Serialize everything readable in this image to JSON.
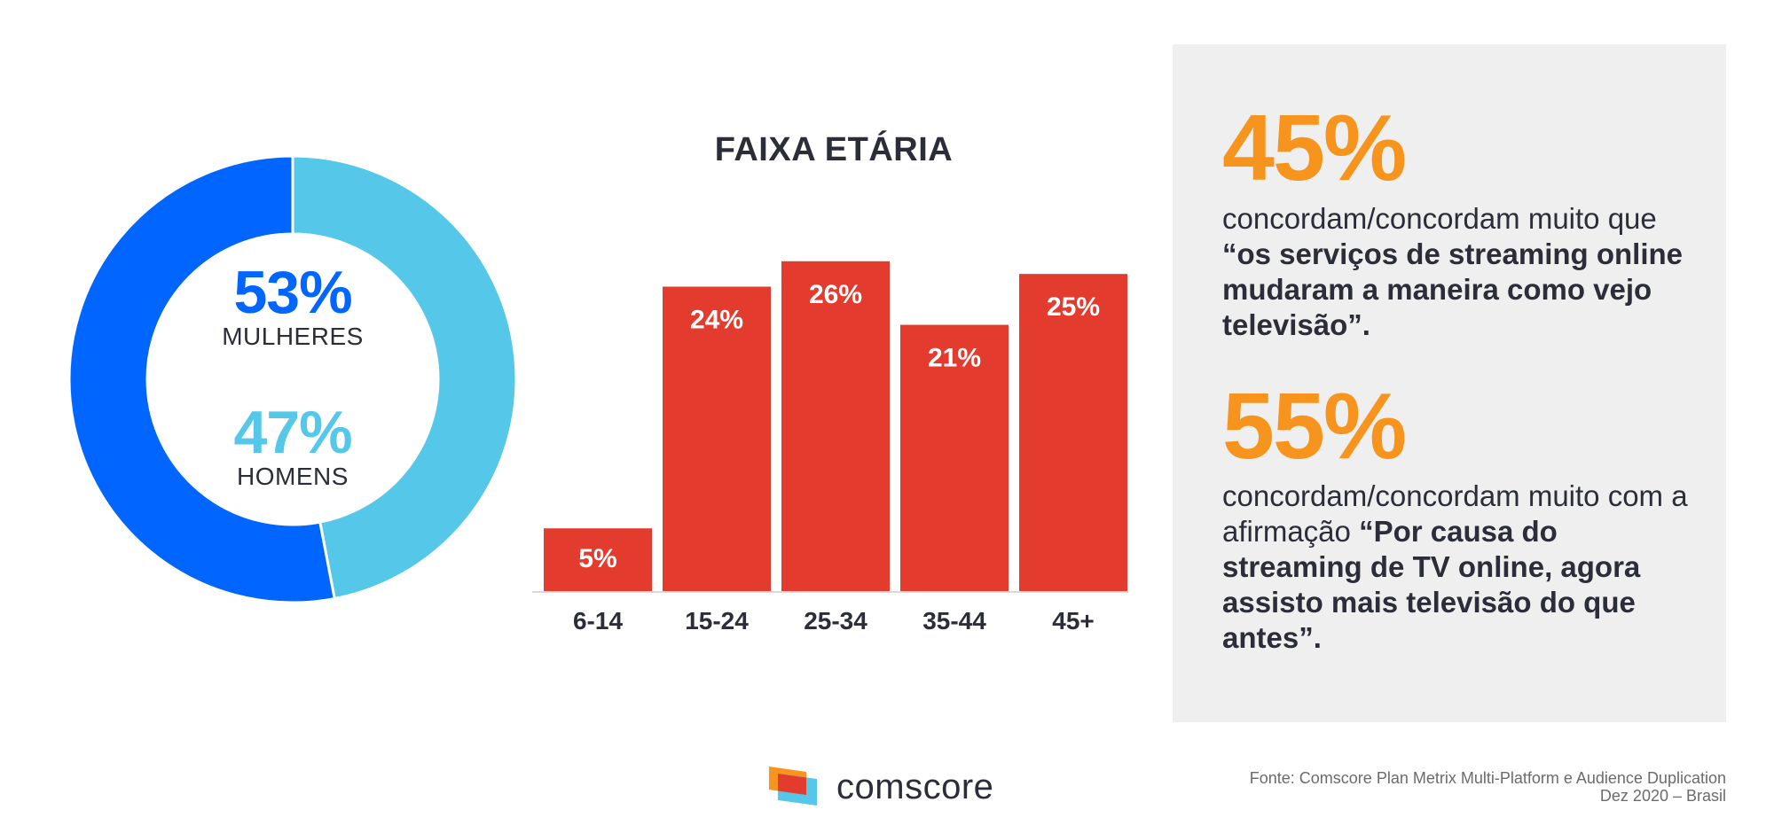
{
  "gender": {
    "women_pct": "53%",
    "women_label": "MULHERES",
    "men_pct": "47%",
    "men_label": "HOMENS",
    "women_value": 53,
    "men_value": 47,
    "women_color": "#0066ff",
    "men_color": "#55c8ea"
  },
  "chart_data": [
    {
      "type": "pie",
      "categories": [
        "MULHERES",
        "HOMENS"
      ],
      "values": [
        53,
        47
      ],
      "title": ""
    },
    {
      "type": "bar",
      "title": "FAIXA ETÁRIA",
      "categories": [
        "6-14",
        "15-24",
        "25-34",
        "35-44",
        "45+"
      ],
      "values": [
        5,
        24,
        26,
        21,
        25
      ],
      "data_labels": [
        "5%",
        "24%",
        "26%",
        "21%",
        "25%"
      ],
      "xlabel": "",
      "ylabel": "",
      "ylim": [
        0,
        26
      ],
      "bar_color": "#e33b2e"
    }
  ],
  "stats": [
    {
      "value": "45%",
      "text_plain": "concordam/concordam muito que ",
      "text_bold": "“os serviços de streaming online mudaram a maneira como vejo televisão”."
    },
    {
      "value": "55%",
      "text_plain": "concordam/concordam muito com a afirmação ",
      "text_bold": "“Por causa do streaming de TV online, agora assisto mais televisão do que antes”."
    }
  ],
  "brand": {
    "name": "comscore",
    "logo_colors": [
      "#f7941d",
      "#e33b2e",
      "#55c8ea"
    ]
  },
  "source": {
    "line1": "Fonte: Comscore Plan Metrix Multi-Platform e Audience Duplication",
    "line2": "Dez 2020 – Brasil"
  },
  "colors": {
    "accent_orange": "#f7941d",
    "text_dark": "#2b2e38",
    "panel_bg": "#efefef"
  }
}
